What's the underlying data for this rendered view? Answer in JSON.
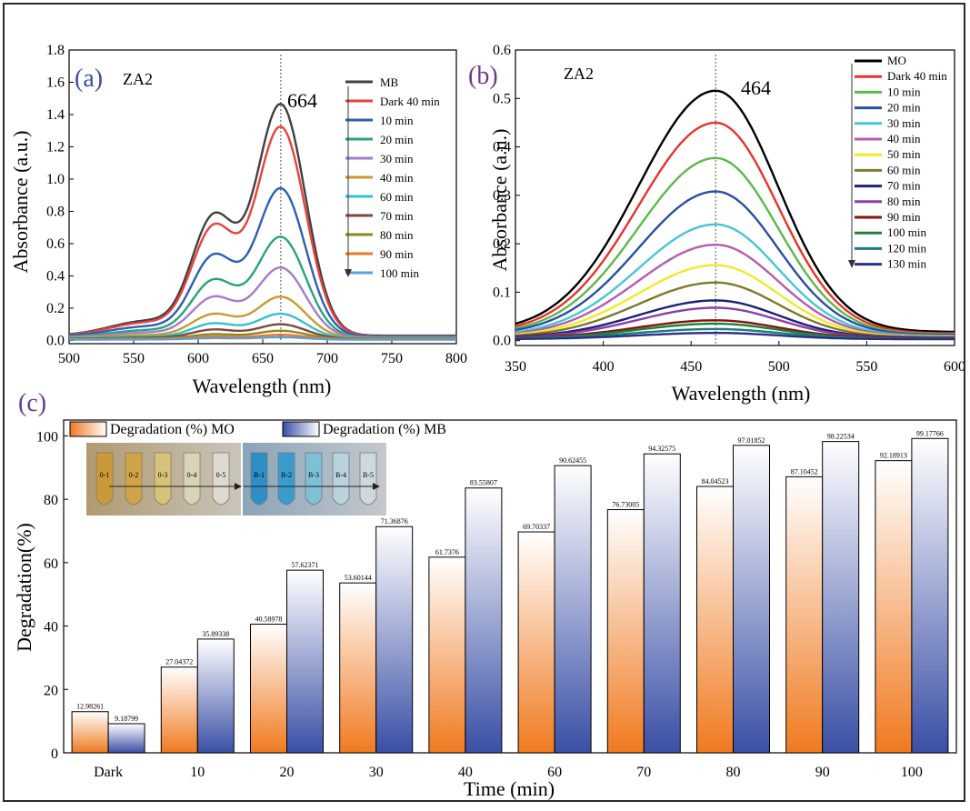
{
  "panels": {
    "a": {
      "panel_label": "(a)",
      "sample": "ZA2",
      "peak_label": "664",
      "xlabel": "Wavelength (nm)",
      "ylabel": "Absorbance (a.u.)",
      "xlim": [
        500,
        800
      ],
      "ylim": [
        -0.02,
        1.8
      ],
      "xticks": [
        500,
        550,
        600,
        650,
        700,
        750,
        800
      ],
      "yticks": [
        "0.0",
        "0.2",
        "0.4",
        "0.6",
        "0.8",
        "1.0",
        "1.2",
        "1.4",
        "1.6",
        "1.8"
      ]
    },
    "b": {
      "panel_label": "(b)",
      "sample": "ZA2",
      "peak_label": "464",
      "xlabel": "Wavelength (nm)",
      "ylabel": "Absorbance (a.u.)",
      "xlim": [
        350,
        600
      ],
      "ylim": [
        -0.01,
        0.6
      ],
      "xticks": [
        350,
        400,
        450,
        500,
        550,
        600
      ],
      "yticks": [
        "0.0",
        "0.1",
        "0.2",
        "0.3",
        "0.4",
        "0.5",
        "0.6"
      ]
    },
    "c": {
      "panel_label": "(c)",
      "xlabel": "Time (min)",
      "ylabel": "Degradation(%)",
      "yticks": [
        "0",
        "20",
        "40",
        "60",
        "80",
        "100"
      ]
    }
  },
  "photo": {
    "mo_tubes": [
      "0-1",
      "0-2",
      "0-3",
      "0-4",
      "0-5"
    ],
    "mb_tubes": [
      "B-1",
      "B-2",
      "B-3",
      "B-4",
      "B-5"
    ]
  },
  "chart_data": [
    {
      "type": "line",
      "xlabel": "Wavelength (nm)",
      "ylabel": "Absorbance (a.u.)",
      "xlim": [
        500,
        800
      ],
      "ylim": [
        -0.02,
        1.8
      ],
      "peak_marker_x": 664,
      "legend_position": "top-right",
      "series": [
        {
          "name": "MB",
          "color": "#404040",
          "peak": 1.46,
          "shoulder": 0.81,
          "baseline": 0.03
        },
        {
          "name": "Dark 40 min",
          "color": "#e8413d",
          "peak": 1.32,
          "shoulder": 0.74,
          "baseline": 0.028
        },
        {
          "name": "10 min",
          "color": "#2e5fb0",
          "peak": 0.94,
          "shoulder": 0.55,
          "baseline": 0.025
        },
        {
          "name": "20 min",
          "color": "#27a37a",
          "peak": 0.64,
          "shoulder": 0.39,
          "baseline": 0.02
        },
        {
          "name": "30 min",
          "color": "#a57cc9",
          "peak": 0.45,
          "shoulder": 0.28,
          "baseline": 0.018
        },
        {
          "name": "40 min",
          "color": "#c99a2e",
          "peak": 0.27,
          "shoulder": 0.17,
          "baseline": 0.015
        },
        {
          "name": "60 min",
          "color": "#33c2c9",
          "peak": 0.165,
          "shoulder": 0.11,
          "baseline": 0.012
        },
        {
          "name": "70 min",
          "color": "#7a4a3c",
          "peak": 0.1,
          "shoulder": 0.07,
          "baseline": 0.01
        },
        {
          "name": "80 min",
          "color": "#8c8a1e",
          "peak": 0.06,
          "shoulder": 0.04,
          "baseline": 0.008
        },
        {
          "name": "90 min",
          "color": "#f0742a",
          "peak": 0.035,
          "shoulder": 0.025,
          "baseline": 0.006
        },
        {
          "name": "100 min",
          "color": "#5aa0d8",
          "peak": 0.02,
          "shoulder": 0.015,
          "baseline": 0.005
        }
      ]
    },
    {
      "type": "line",
      "xlabel": "Wavelength (nm)",
      "ylabel": "Absorbance (a.u.)",
      "xlim": [
        350,
        600
      ],
      "ylim": [
        -0.01,
        0.6
      ],
      "peak_marker_x": 464,
      "legend_position": "top-right",
      "series": [
        {
          "name": "MO",
          "color": "#000000",
          "peak": 0.516,
          "baseline": 0.018
        },
        {
          "name": "Dark 40 min",
          "color": "#e8332b",
          "peak": 0.45,
          "baseline": 0.015
        },
        {
          "name": "10 min",
          "color": "#5cb84a",
          "peak": 0.377,
          "baseline": 0.013
        },
        {
          "name": "20 min",
          "color": "#2a4ea0",
          "peak": 0.308,
          "baseline": 0.012
        },
        {
          "name": "30 min",
          "color": "#45c6d6",
          "peak": 0.24,
          "baseline": 0.01
        },
        {
          "name": "40 min",
          "color": "#b45cb0",
          "peak": 0.198,
          "baseline": 0.009
        },
        {
          "name": "50 min",
          "color": "#f2e82a",
          "peak": 0.156,
          "baseline": 0.008
        },
        {
          "name": "60 min",
          "color": "#7d7a2a",
          "peak": 0.12,
          "baseline": 0.007
        },
        {
          "name": "70 min",
          "color": "#1d1f7a",
          "peak": 0.083,
          "baseline": 0.006
        },
        {
          "name": "80 min",
          "color": "#8a3fa8",
          "peak": 0.068,
          "baseline": 0.005
        },
        {
          "name": "90 min",
          "color": "#8a1010",
          "peak": 0.042,
          "baseline": 0.005
        },
        {
          "name": "100 min",
          "color": "#1f7f3a",
          "peak": 0.035,
          "baseline": 0.004
        },
        {
          "name": "120 min",
          "color": "#1f7a7a",
          "peak": 0.024,
          "baseline": 0.004
        },
        {
          "name": "130 min",
          "color": "#2a2f8a",
          "peak": 0.016,
          "baseline": 0.003
        }
      ]
    },
    {
      "type": "bar",
      "xlabel": "Time (min)",
      "ylabel": "Degradation(%)",
      "ylim": [
        0,
        105
      ],
      "categories": [
        "Dark",
        "10",
        "20",
        "30",
        "40",
        "60",
        "70",
        "80",
        "90",
        "100"
      ],
      "legend_position": "top-left",
      "series": [
        {
          "name": "Degradation (%) MO",
          "values": [
            12.98261,
            27.04372,
            40.58978,
            53.60144,
            61.7376,
            69.70337,
            76.73005,
            84.04523,
            87.10452,
            92.18913
          ],
          "labels": [
            "12.98261",
            "27.04372",
            "40.58978",
            "53.60144",
            "61.7376",
            "69.70337",
            "76.73005",
            "84.04523",
            "87.10452",
            "92.18913"
          ],
          "color_top": "#ffffff",
          "color_bottom": "#f07a20"
        },
        {
          "name": "Degradation (%) MB",
          "values": [
            9.18799,
            35.89338,
            57.62371,
            71.36876,
            83.55807,
            90.62455,
            94.32575,
            97.01852,
            98.22534,
            99.17766
          ],
          "labels": [
            "9.18799",
            "35.89338",
            "57.62371",
            "71.36876",
            "83.55807",
            "90.62455",
            "94.32575",
            "97.01852",
            "98.22534",
            "99.17766"
          ],
          "color_top": "#ffffff",
          "color_bottom": "#3a4fa6"
        }
      ]
    }
  ]
}
